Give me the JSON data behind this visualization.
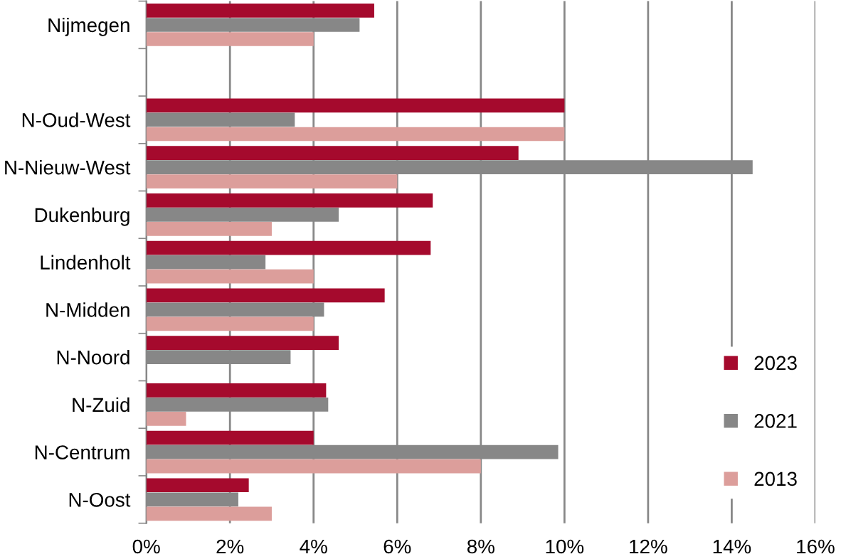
{
  "chart_data": {
    "type": "bar",
    "orientation": "horizontal",
    "categories": [
      "Nijmegen",
      null,
      "N-Oud-West",
      "N-Nieuw-West",
      "Dukenburg",
      "Lindenholt",
      "N-Midden",
      "N-Noord",
      "N-Zuid",
      "N-Centrum",
      "N-Oost"
    ],
    "series": [
      {
        "name": "2023",
        "color": "#a50a2d",
        "values": [
          5.45,
          null,
          10.0,
          8.9,
          6.85,
          6.8,
          5.7,
          4.6,
          4.3,
          4.0,
          2.45
        ]
      },
      {
        "name": "2021",
        "color": "#878787",
        "values": [
          5.1,
          null,
          3.55,
          14.5,
          4.6,
          2.85,
          4.25,
          3.45,
          4.35,
          9.85,
          2.2
        ]
      },
      {
        "name": "2013",
        "color": "#dc9e9b",
        "values": [
          4.0,
          null,
          10.0,
          6.0,
          3.0,
          4.0,
          4.0,
          null,
          0.95,
          8.0,
          3.0
        ]
      }
    ],
    "xlim": [
      0,
      16
    ],
    "xticks": [
      {
        "value": 0,
        "label": "0%"
      },
      {
        "value": 2,
        "label": "2%"
      },
      {
        "value": 4,
        "label": "4%"
      },
      {
        "value": 6,
        "label": "6%"
      },
      {
        "value": 8,
        "label": "8%"
      },
      {
        "value": 10,
        "label": "10%"
      },
      {
        "value": 12,
        "label": "12%"
      },
      {
        "value": 14,
        "label": "14%"
      },
      {
        "value": 16,
        "label": "16%"
      }
    ],
    "grid": "x",
    "legend": "bottom right"
  }
}
